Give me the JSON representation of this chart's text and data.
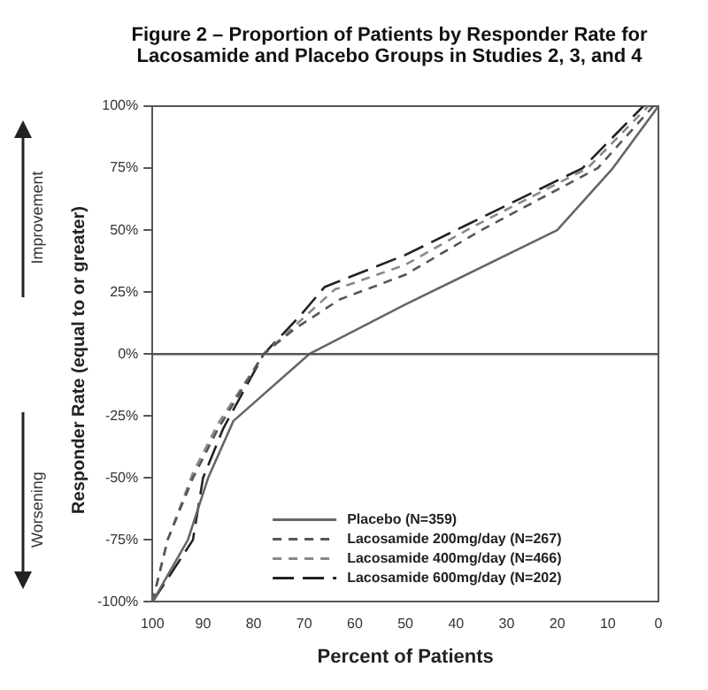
{
  "chart_data": {
    "type": "line",
    "title": "Figure 2 – Proportion of Patients by Responder Rate for Lacosamide and Placebo Groups in Studies 2, 3, and 4",
    "xlabel": "Percent of Patients",
    "ylabel": "Responder Rate (equal to or greater)",
    "annotations": [
      "Improvement",
      "Worsening"
    ],
    "xlim": [
      100,
      0
    ],
    "xticks": [
      100,
      90,
      80,
      70,
      60,
      50,
      40,
      30,
      20,
      10,
      0
    ],
    "ylim": [
      -100,
      100
    ],
    "yticks": [
      {
        "value": -100,
        "label": "-100%"
      },
      {
        "value": -75,
        "label": "-75%"
      },
      {
        "value": -50,
        "label": "-50%"
      },
      {
        "value": -25,
        "label": "-25%"
      },
      {
        "value": 0,
        "label": "0%"
      },
      {
        "value": 25,
        "label": "25%"
      },
      {
        "value": 50,
        "label": "50%"
      },
      {
        "value": 75,
        "label": "75%"
      },
      {
        "value": 100,
        "label": "100%"
      }
    ],
    "ref_lines": [
      {
        "axis": "y",
        "value": 0,
        "color": "#555555"
      }
    ],
    "legend": "bottom",
    "marker": "none",
    "series": [
      {
        "name": "Placebo (N=359)",
        "color": "#666666",
        "line_style": "solid",
        "x": [
          100,
          93,
          89,
          84,
          69,
          50,
          20,
          9,
          0
        ],
        "values": [
          -100,
          -75,
          -50,
          -27,
          0,
          20,
          50,
          75,
          100
        ]
      },
      {
        "name": "Lacosamide 200mg/day (N=267)",
        "color": "#555555",
        "line_style": "dashed",
        "x": [
          100,
          97,
          92,
          87,
          78,
          72,
          63,
          50,
          35,
          12,
          1
        ],
        "values": [
          -100,
          -75,
          -50,
          -30,
          0,
          10,
          22,
          32,
          50,
          75,
          100
        ]
      },
      {
        "name": "Lacosamide 400mg/day (N=466)",
        "color": "#888888",
        "line_style": "dashed",
        "x": [
          100,
          97,
          92,
          87,
          78,
          71,
          64,
          50,
          37,
          14,
          2
        ],
        "values": [
          -100,
          -75,
          -48,
          -28,
          0,
          13,
          26,
          36,
          51,
          75,
          100
        ]
      },
      {
        "name": "Lacosamide 600mg/day (N=202)",
        "color": "#222222",
        "line_style": "longdash",
        "x": [
          100,
          92,
          90,
          86,
          78,
          71,
          66,
          50,
          38,
          15,
          3
        ],
        "values": [
          -100,
          -75,
          -50,
          -30,
          0,
          15,
          27,
          40,
          52,
          75,
          100
        ]
      }
    ]
  }
}
